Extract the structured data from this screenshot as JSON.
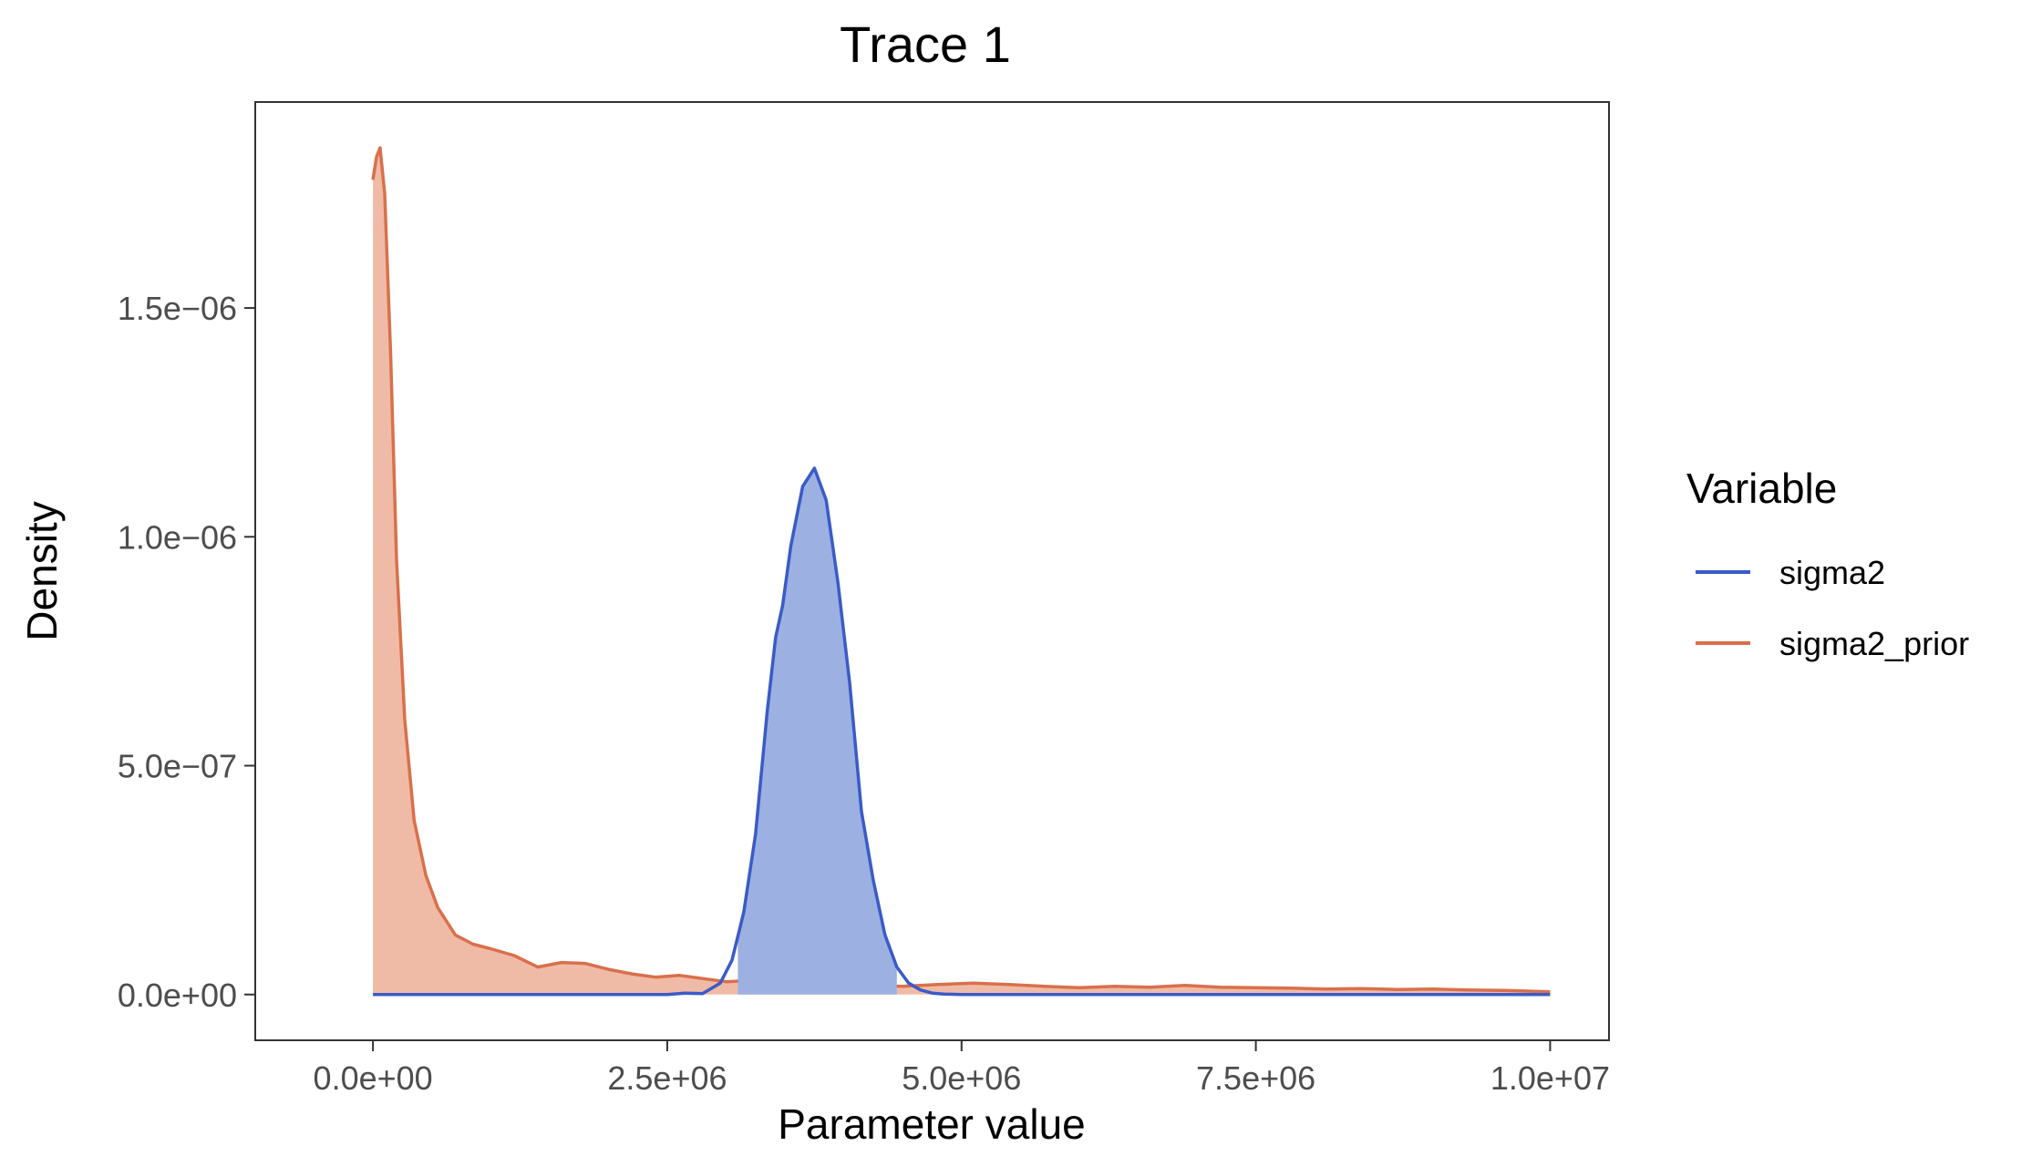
{
  "chart_data": {
    "type": "area",
    "title": "Trace 1",
    "xlabel": "Parameter value",
    "ylabel": "Density",
    "xlim": [
      -1000000,
      10500000
    ],
    "ylim": [
      -1e-07,
      1.95e-06
    ],
    "x_ticks": [
      0,
      2500000,
      5000000,
      7500000,
      10000000
    ],
    "x_tick_labels": [
      "0.0e+00",
      "2.5e+06",
      "5.0e+06",
      "7.5e+06",
      "1.0e+07"
    ],
    "y_ticks": [
      0,
      5e-07,
      1e-06,
      1.5e-06
    ],
    "y_tick_labels": [
      "0.0e+00",
      "5.0e−07",
      "1.0e−06",
      "1.5e−06"
    ],
    "grid": false,
    "legend": {
      "title": "Variable",
      "position": "right"
    },
    "series": [
      {
        "name": "sigma2",
        "color": "#3a5bc7",
        "fill_color": "#9cb0e2",
        "shaded_interval": [
          3100000,
          4450000
        ],
        "x": [
          0,
          2500000,
          2650000,
          2800000,
          2950000,
          3050000,
          3150000,
          3250000,
          3350000,
          3420000,
          3480000,
          3550000,
          3650000,
          3750000,
          3850000,
          3950000,
          4050000,
          4150000,
          4250000,
          4350000,
          4450000,
          4550000,
          4650000,
          4750000,
          4850000,
          5000000,
          5200000,
          10000000
        ],
        "y": [
          0,
          0,
          3e-09,
          2e-09,
          2.5e-08,
          7.5e-08,
          1.8e-07,
          3.5e-07,
          6.2e-07,
          7.8e-07,
          8.5e-07,
          9.8e-07,
          1.11e-06,
          1.15e-06,
          1.08e-06,
          9e-07,
          6.8e-07,
          4e-07,
          2.5e-07,
          1.3e-07,
          6e-08,
          2.5e-08,
          1e-08,
          3e-09,
          1e-09,
          0,
          0,
          0
        ]
      },
      {
        "name": "sigma2_prior",
        "color": "#d9704b",
        "fill_color": "#f0bba6",
        "x": [
          0,
          30000,
          60000,
          100000,
          150000,
          200000,
          270000,
          350000,
          450000,
          550000,
          700000,
          850000,
          1000000,
          1200000,
          1400000,
          1600000,
          1800000,
          2000000,
          2200000,
          2400000,
          2600000,
          2800000,
          3000000,
          3300000,
          3600000,
          3900000,
          4200000,
          4500000,
          4800000,
          5100000,
          5400000,
          5700000,
          6000000,
          6300000,
          6600000,
          6900000,
          7200000,
          7500000,
          7800000,
          8100000,
          8400000,
          8700000,
          9000000,
          9300000,
          9600000,
          10000000
        ],
        "y": [
          1.78e-06,
          1.83e-06,
          1.85e-06,
          1.75e-06,
          1.4e-06,
          9.5e-07,
          6e-07,
          3.8e-07,
          2.6e-07,
          1.9e-07,
          1.3e-07,
          1.1e-07,
          1e-07,
          8.5e-08,
          6e-08,
          7e-08,
          6.8e-08,
          5.5e-08,
          4.5e-08,
          3.8e-08,
          4.2e-08,
          3.5e-08,
          2.8e-08,
          3.2e-08,
          2.8e-08,
          2.5e-08,
          2e-08,
          1.8e-08,
          2.2e-08,
          2.5e-08,
          2.2e-08,
          1.8e-08,
          1.5e-08,
          1.8e-08,
          1.6e-08,
          2e-08,
          1.6e-08,
          1.5e-08,
          1.4e-08,
          1.2e-08,
          1.3e-08,
          1.1e-08,
          1.2e-08,
          1e-08,
          9e-09,
          6e-09
        ]
      }
    ]
  }
}
